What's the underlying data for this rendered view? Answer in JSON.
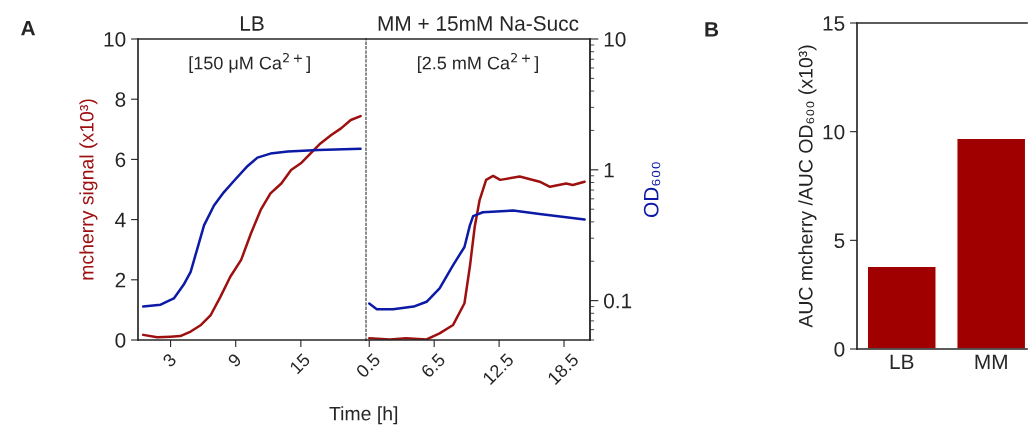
{
  "chart_data": [
    {
      "type": "line",
      "title": "LB",
      "xlabel": "Time [h]",
      "ylabel": "mcherry signal (x10³)",
      "annotations": [
        "A",
        "[150 μM Ca$^{2+}$]"
      ],
      "xlim": [
        0,
        21
      ],
      "xticks": [
        3,
        9,
        15
      ],
      "ylim": [
        0,
        10
      ],
      "yticks": [
        0,
        2,
        4,
        6,
        8,
        10
      ],
      "y2lim": [
        0.05,
        10
      ],
      "log": "y2",
      "tick_labels": "xy",
      "grid": false,
      "legend": false,
      "line_style": "solid",
      "marker": "none",
      "series": [
        {
          "color": "#9e1010",
          "x": [
            0.48,
            1.77,
            3,
            3.9,
            4.85,
            5.8,
            6.7,
            7.6,
            8.5,
            9.5,
            10.4,
            11.3,
            12.2,
            13.2,
            14.1,
            15,
            15.9,
            16.8,
            17.8,
            18.7,
            19.6,
            20.5
          ],
          "values": [
            0.17,
            0.09,
            0.11,
            0.13,
            0.28,
            0.5,
            0.83,
            1.44,
            2.1,
            2.66,
            3.54,
            4.32,
            4.87,
            5.2,
            5.65,
            5.87,
            6.2,
            6.53,
            6.81,
            7.03,
            7.31,
            7.44
          ]
        },
        {
          "color": "#0c1aa6",
          "axis": "y2",
          "x": [
            0.48,
            2.08,
            3.3,
            4.2,
            4.85,
            5.46,
            6.08,
            7.0,
            7.9,
            8.85,
            10.1,
            11.0,
            12.2,
            13.8,
            16.6,
            20.5
          ],
          "values": [
            0.09,
            0.093,
            0.104,
            0.132,
            0.166,
            0.249,
            0.376,
            0.533,
            0.673,
            0.825,
            1.07,
            1.24,
            1.33,
            1.38,
            1.42,
            1.45
          ]
        }
      ]
    },
    {
      "type": "line",
      "title": "MM + 15mM Na-Succ",
      "y2label": "OD₆₀₀",
      "annotations": [
        "[2.5 mM Ca$^{2+}$]"
      ],
      "xlim": [
        0.2,
        20.9
      ],
      "xticks": [
        0.5,
        6.5,
        12.5,
        18.5
      ],
      "ylim": [
        0,
        10
      ],
      "y2lim": [
        0.05,
        10
      ],
      "y2ticks": [
        0.1,
        1,
        10
      ],
      "log": "y2",
      "tick_labels": "xy2",
      "grid": false,
      "legend": false,
      "line_style": "solid",
      "marker": "none",
      "series": [
        {
          "color": "#9e1010",
          "x": [
            0.5,
            2.4,
            3.9,
            5.8,
            7.0,
            8.25,
            9.3,
            9.8,
            10.25,
            10.7,
            11.3,
            11.95,
            12.6,
            14.4,
            16.25,
            17.2,
            18.7,
            19.3,
            20.4
          ],
          "values": [
            0.06,
            0.02,
            0.06,
            0.02,
            0.22,
            0.5,
            1.22,
            2.44,
            3.77,
            4.65,
            5.32,
            5.45,
            5.32,
            5.43,
            5.26,
            5.09,
            5.2,
            5.15,
            5.26
          ]
        },
        {
          "color": "#0c1aa6",
          "axis": "y2",
          "x": [
            0.5,
            1.2,
            2.7,
            4.6,
            5.8,
            7.0,
            8.25,
            9.3,
            9.8,
            10.1,
            11.0,
            13.8,
            16.25,
            20.4
          ],
          "values": [
            0.095,
            0.086,
            0.086,
            0.09,
            0.098,
            0.124,
            0.187,
            0.257,
            0.376,
            0.443,
            0.474,
            0.489,
            0.46,
            0.417
          ]
        }
      ]
    },
    {
      "type": "bar",
      "ylabel": "AUC mcherry /AUC OD₆₀₀ (x10³)",
      "annotations": [
        "B"
      ],
      "categories": [
        "LB",
        "MM"
      ],
      "values": [
        3.8,
        9.7
      ],
      "colors": [
        "#a00000",
        "#a00000"
      ],
      "ylim": [
        0,
        15
      ],
      "yticks": [
        0,
        5,
        10,
        15
      ],
      "grid": false,
      "legend": false
    }
  ]
}
